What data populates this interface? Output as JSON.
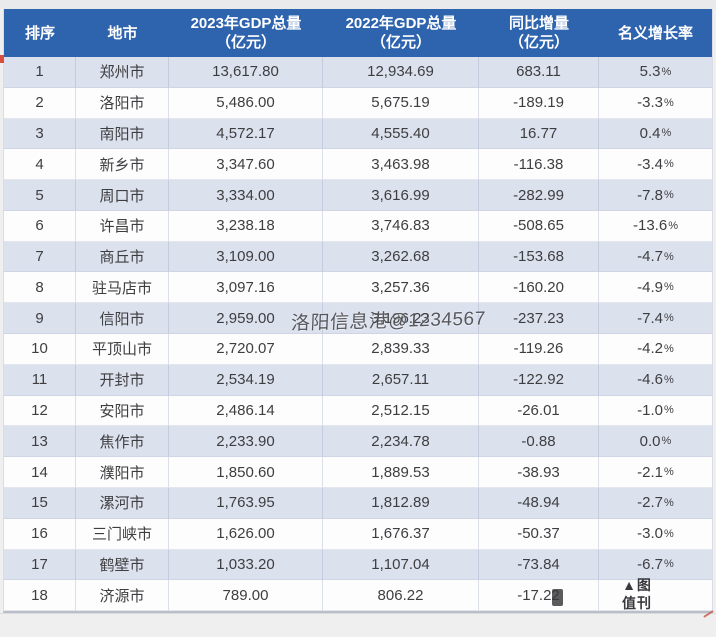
{
  "colors": {
    "header_bg": "#2e63ae",
    "header_text": "#ffffff",
    "row_alt": "#dce1ee",
    "row_white": "#fdfdfe",
    "cell_text": "#3e3e40",
    "watermark_text": "#45464b",
    "frame_bg": "#efefef"
  },
  "watermarks": {
    "center": "洛阳信息港@1234567",
    "corner_line1": "▲图",
    "corner_line2": "值刊"
  },
  "chart_data": {
    "type": "table",
    "headers": [
      {
        "l1": "排序",
        "l2": ""
      },
      {
        "l1": "地市",
        "l2": ""
      },
      {
        "l1": "2023年GDP总量",
        "l2": "（亿元）"
      },
      {
        "l1": "2022年GDP总量",
        "l2": "（亿元）"
      },
      {
        "l1": "同比增量",
        "l2": "（亿元）"
      },
      {
        "l1": "名义增长率",
        "l2": ""
      }
    ],
    "rows": [
      [
        "1",
        "郑州市",
        "13,617.80",
        "12,934.69",
        "683.11",
        "5.3%"
      ],
      [
        "2",
        "洛阳市",
        "5,486.00",
        "5,675.19",
        "-189.19",
        "-3.3%"
      ],
      [
        "3",
        "南阳市",
        "4,572.17",
        "4,555.40",
        "16.77",
        "0.4%"
      ],
      [
        "4",
        "新乡市",
        "3,347.60",
        "3,463.98",
        "-116.38",
        "-3.4%"
      ],
      [
        "5",
        "周口市",
        "3,334.00",
        "3,616.99",
        "-282.99",
        "-7.8%"
      ],
      [
        "6",
        "许昌市",
        "3,238.18",
        "3,746.83",
        "-508.65",
        "-13.6%"
      ],
      [
        "7",
        "商丘市",
        "3,109.00",
        "3,262.68",
        "-153.68",
        "-4.7%"
      ],
      [
        "8",
        "驻马店市",
        "3,097.16",
        "3,257.36",
        "-160.20",
        "-4.9%"
      ],
      [
        "9",
        "信阳市",
        "2,959.00",
        "3,196.23",
        "-237.23",
        "-7.4%"
      ],
      [
        "10",
        "平顶山市",
        "2,720.07",
        "2,839.33",
        "-119.26",
        "-4.2%"
      ],
      [
        "11",
        "开封市",
        "2,534.19",
        "2,657.11",
        "-122.92",
        "-4.6%"
      ],
      [
        "12",
        "安阳市",
        "2,486.14",
        "2,512.15",
        "-26.01",
        "-1.0%"
      ],
      [
        "13",
        "焦作市",
        "2,233.90",
        "2,234.78",
        "-0.88",
        "0.0%"
      ],
      [
        "14",
        "濮阳市",
        "1,850.60",
        "1,889.53",
        "-38.93",
        "-2.1%"
      ],
      [
        "15",
        "漯河市",
        "1,763.95",
        "1,812.89",
        "-48.94",
        "-2.7%"
      ],
      [
        "16",
        "三门峡市",
        "1,626.00",
        "1,676.37",
        "-50.37",
        "-3.0%"
      ],
      [
        "17",
        "鹤壁市",
        "1,033.20",
        "1,107.04",
        "-73.84",
        "-6.7%"
      ],
      [
        "18",
        "济源市",
        "789.00",
        "806.22",
        "-17.22",
        ""
      ]
    ]
  }
}
